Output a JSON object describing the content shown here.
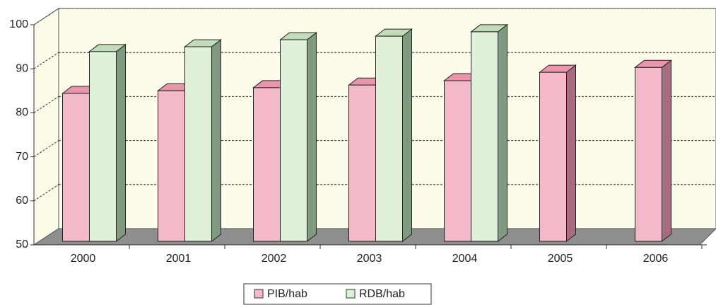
{
  "chart_data": {
    "type": "bar3d",
    "categories": [
      "2000",
      "2001",
      "2002",
      "2003",
      "2004",
      "2005",
      "2006"
    ],
    "series": [
      {
        "name": "PIB/hab",
        "color": "#f4b9c9",
        "values": [
          83.6,
          84.2,
          84.9,
          85.5,
          86.5,
          88.4,
          89.5
        ]
      },
      {
        "name": "RDB/hab",
        "color": "#e0f0d9",
        "values": [
          93.1,
          94.2,
          95.8,
          96.6,
          97.6,
          null,
          null
        ]
      }
    ],
    "ylim": [
      50,
      100
    ],
    "yticks": [
      50,
      60,
      70,
      80,
      90,
      100
    ],
    "grid": true,
    "legend": "bottom"
  }
}
